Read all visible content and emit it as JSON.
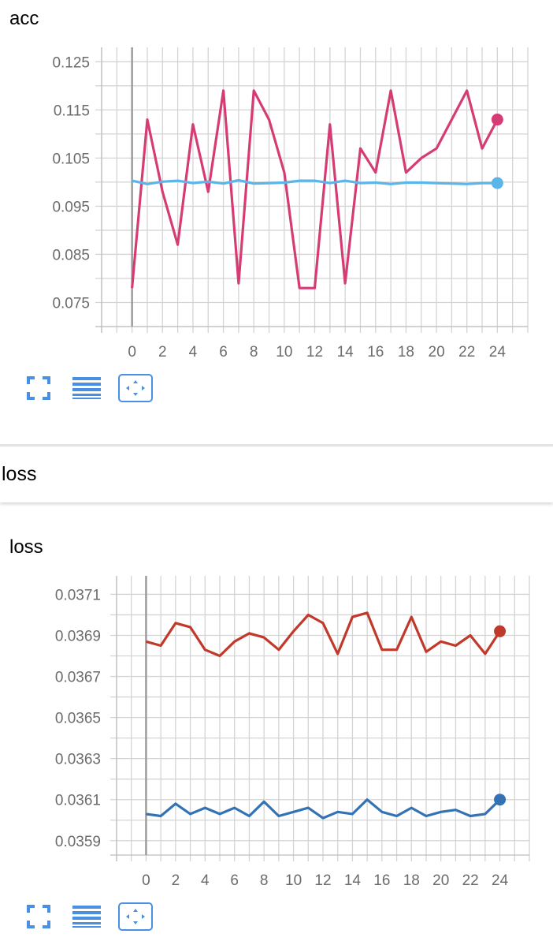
{
  "cards": [
    {
      "title": "acc",
      "chart_data": {
        "type": "line",
        "title": "acc",
        "xlabel": "",
        "ylabel": "",
        "xlim": [
          -2,
          26
        ],
        "ylim": [
          0.07,
          0.128
        ],
        "x_ticks": [
          0,
          2,
          4,
          6,
          8,
          10,
          12,
          14,
          16,
          18,
          20,
          22,
          24
        ],
        "y_ticks": [
          0.075,
          0.085,
          0.095,
          0.105,
          0.115,
          0.125
        ],
        "y_tick_labels": [
          "0.075",
          "0.085",
          "0.095",
          "0.105",
          "0.115",
          "0.125"
        ],
        "grid": true,
        "series": [
          {
            "color": "#d63c74",
            "x": [
              0,
              1,
              2,
              3,
              4,
              5,
              6,
              7,
              8,
              9,
              10,
              11,
              12,
              13,
              14,
              15,
              16,
              17,
              18,
              19,
              20,
              21,
              22,
              23,
              24
            ],
            "values": [
              0.078,
              0.113,
              0.098,
              0.087,
              0.112,
              0.098,
              0.119,
              0.079,
              0.119,
              0.113,
              0.102,
              0.078,
              0.078,
              0.112,
              0.079,
              0.107,
              0.102,
              0.119,
              0.102,
              0.105,
              0.107,
              0.113,
              0.119,
              0.107,
              0.113
            ]
          },
          {
            "color": "#5bb5e8",
            "x": [
              0,
              1,
              2,
              3,
              4,
              5,
              6,
              7,
              8,
              9,
              10,
              11,
              12,
              13,
              14,
              15,
              16,
              17,
              18,
              19,
              20,
              21,
              22,
              23,
              24
            ],
            "values": [
              0.1003,
              0.0996,
              0.1001,
              0.1003,
              0.0998,
              0.1001,
              0.0997,
              0.1004,
              0.0997,
              0.0998,
              0.0999,
              0.1003,
              0.1003,
              0.0998,
              0.1003,
              0.0998,
              0.0999,
              0.0996,
              0.0999,
              0.0999,
              0.0998,
              0.0997,
              0.0996,
              0.0998,
              0.0998
            ]
          }
        ]
      }
    },
    {
      "title": "loss",
      "chart_data": {
        "type": "line",
        "title": "loss",
        "xlabel": "",
        "ylabel": "",
        "xlim": [
          -2,
          26
        ],
        "ylim": [
          0.03583,
          0.03719
        ],
        "x_ticks": [
          0,
          2,
          4,
          6,
          8,
          10,
          12,
          14,
          16,
          18,
          20,
          22,
          24
        ],
        "y_ticks": [
          0.0359,
          0.0361,
          0.0363,
          0.0365,
          0.0367,
          0.0369,
          0.0371
        ],
        "y_tick_labels": [
          "0.0359",
          "0.0361",
          "0.0363",
          "0.0365",
          "0.0367",
          "0.0369",
          "0.0371"
        ],
        "grid": true,
        "series": [
          {
            "color": "#c0392b",
            "x": [
              0,
              1,
              2,
              3,
              4,
              5,
              6,
              7,
              8,
              9,
              10,
              11,
              12,
              13,
              14,
              15,
              16,
              17,
              18,
              19,
              20,
              21,
              22,
              23,
              24
            ],
            "values": [
              0.03687,
              0.03685,
              0.03696,
              0.03694,
              0.03683,
              0.0368,
              0.03687,
              0.03691,
              0.03689,
              0.03683,
              0.03692,
              0.037,
              0.03696,
              0.03681,
              0.03699,
              0.03701,
              0.03683,
              0.03683,
              0.03699,
              0.03682,
              0.03687,
              0.03685,
              0.0369,
              0.03681,
              0.03692
            ]
          },
          {
            "color": "#3373b5",
            "x": [
              0,
              1,
              2,
              3,
              4,
              5,
              6,
              7,
              8,
              9,
              10,
              11,
              12,
              13,
              14,
              15,
              16,
              17,
              18,
              19,
              20,
              21,
              22,
              23,
              24
            ],
            "values": [
              0.03603,
              0.03602,
              0.03608,
              0.03603,
              0.03606,
              0.03603,
              0.03606,
              0.03602,
              0.03609,
              0.03602,
              0.03604,
              0.03606,
              0.03601,
              0.03604,
              0.03603,
              0.0361,
              0.03604,
              0.03602,
              0.03606,
              0.03602,
              0.03604,
              0.03605,
              0.03602,
              0.03603,
              0.0361
            ]
          }
        ]
      }
    }
  ],
  "section": {
    "title": "loss"
  },
  "toolbar": {
    "icons": [
      "fullscreen-icon",
      "toggle-y-log-icon",
      "fit-domain-icon"
    ],
    "accent": "#4a90e2"
  }
}
